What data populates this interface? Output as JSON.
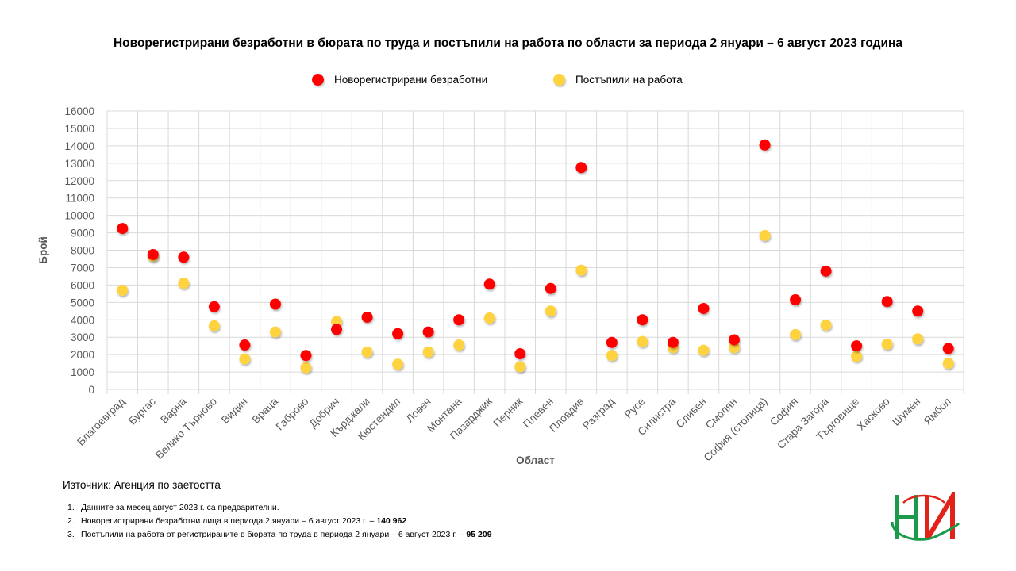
{
  "title": "Новорегистрирани безработни в бюрата по труда и постъпили на работа по области за периода 2 януари – 6 август 2023 година",
  "source": "Източник: Агенция по заетостта",
  "notes": [
    {
      "num": "1.",
      "text": "Данните за месец август 2023 г. са предварителни.",
      "bold": ""
    },
    {
      "num": "2.",
      "text": "Новорегистрирани безработни лица в периода 2 януари – 6 август 2023 г. – ",
      "bold": "140 962"
    },
    {
      "num": "3.",
      "text": "Постъпили на работа от регистрираните в бюрата по труда в периода 2 януари – 6 август 2023 г. – ",
      "bold": "95 209"
    }
  ],
  "colors": {
    "registered": "#ff0000",
    "employed": "#ffd23f",
    "grid": "#d9d9d9",
    "axis_text": "#595959",
    "logo_green": "#1a9a4a",
    "logo_red": "#e2231a"
  },
  "logo": {
    "icon": "nsi-logo-icon"
  },
  "chart_data": {
    "type": "scatter",
    "xlabel": "Област",
    "ylabel": "Брой",
    "ylim": [
      0,
      16000
    ],
    "ytick_step": 1000,
    "grid": true,
    "legend_position": "top-center",
    "categories": [
      "Благоевград",
      "Бургас",
      "Варна",
      "Велико Търново",
      "Видин",
      "Враца",
      "Габрово",
      "Добрич",
      "Кърджали",
      "Кюстендил",
      "Ловеч",
      "Монтана",
      "Пазарджик",
      "Перник",
      "Плевен",
      "Пловдив",
      "Разград",
      "Русе",
      "Силистра",
      "Сливен",
      "Смолян",
      "София (столица)",
      "София",
      "Стара Загора",
      "Търговище",
      "Хасково",
      "Шумен",
      "Ямбол"
    ],
    "series": [
      {
        "name": "Новорегистрирани безработни",
        "color": "#ff0000",
        "values": [
          9250,
          7750,
          7600,
          4750,
          2550,
          4900,
          1950,
          3450,
          4150,
          3200,
          3300,
          4000,
          6050,
          2050,
          5800,
          12750,
          2700,
          4000,
          2700,
          4650,
          2850,
          14050,
          5150,
          6800,
          2500,
          5050,
          4500,
          2350
        ]
      },
      {
        "name": "Постъпили на работа",
        "color": "#ffd23f",
        "values": [
          5700,
          7650,
          6100,
          3650,
          1750,
          3300,
          1250,
          3900,
          2150,
          1450,
          2150,
          2550,
          4100,
          1300,
          4500,
          6850,
          1950,
          2750,
          2400,
          2250,
          2400,
          8850,
          3150,
          3700,
          1900,
          2600,
          2900,
          1500
        ]
      }
    ]
  }
}
